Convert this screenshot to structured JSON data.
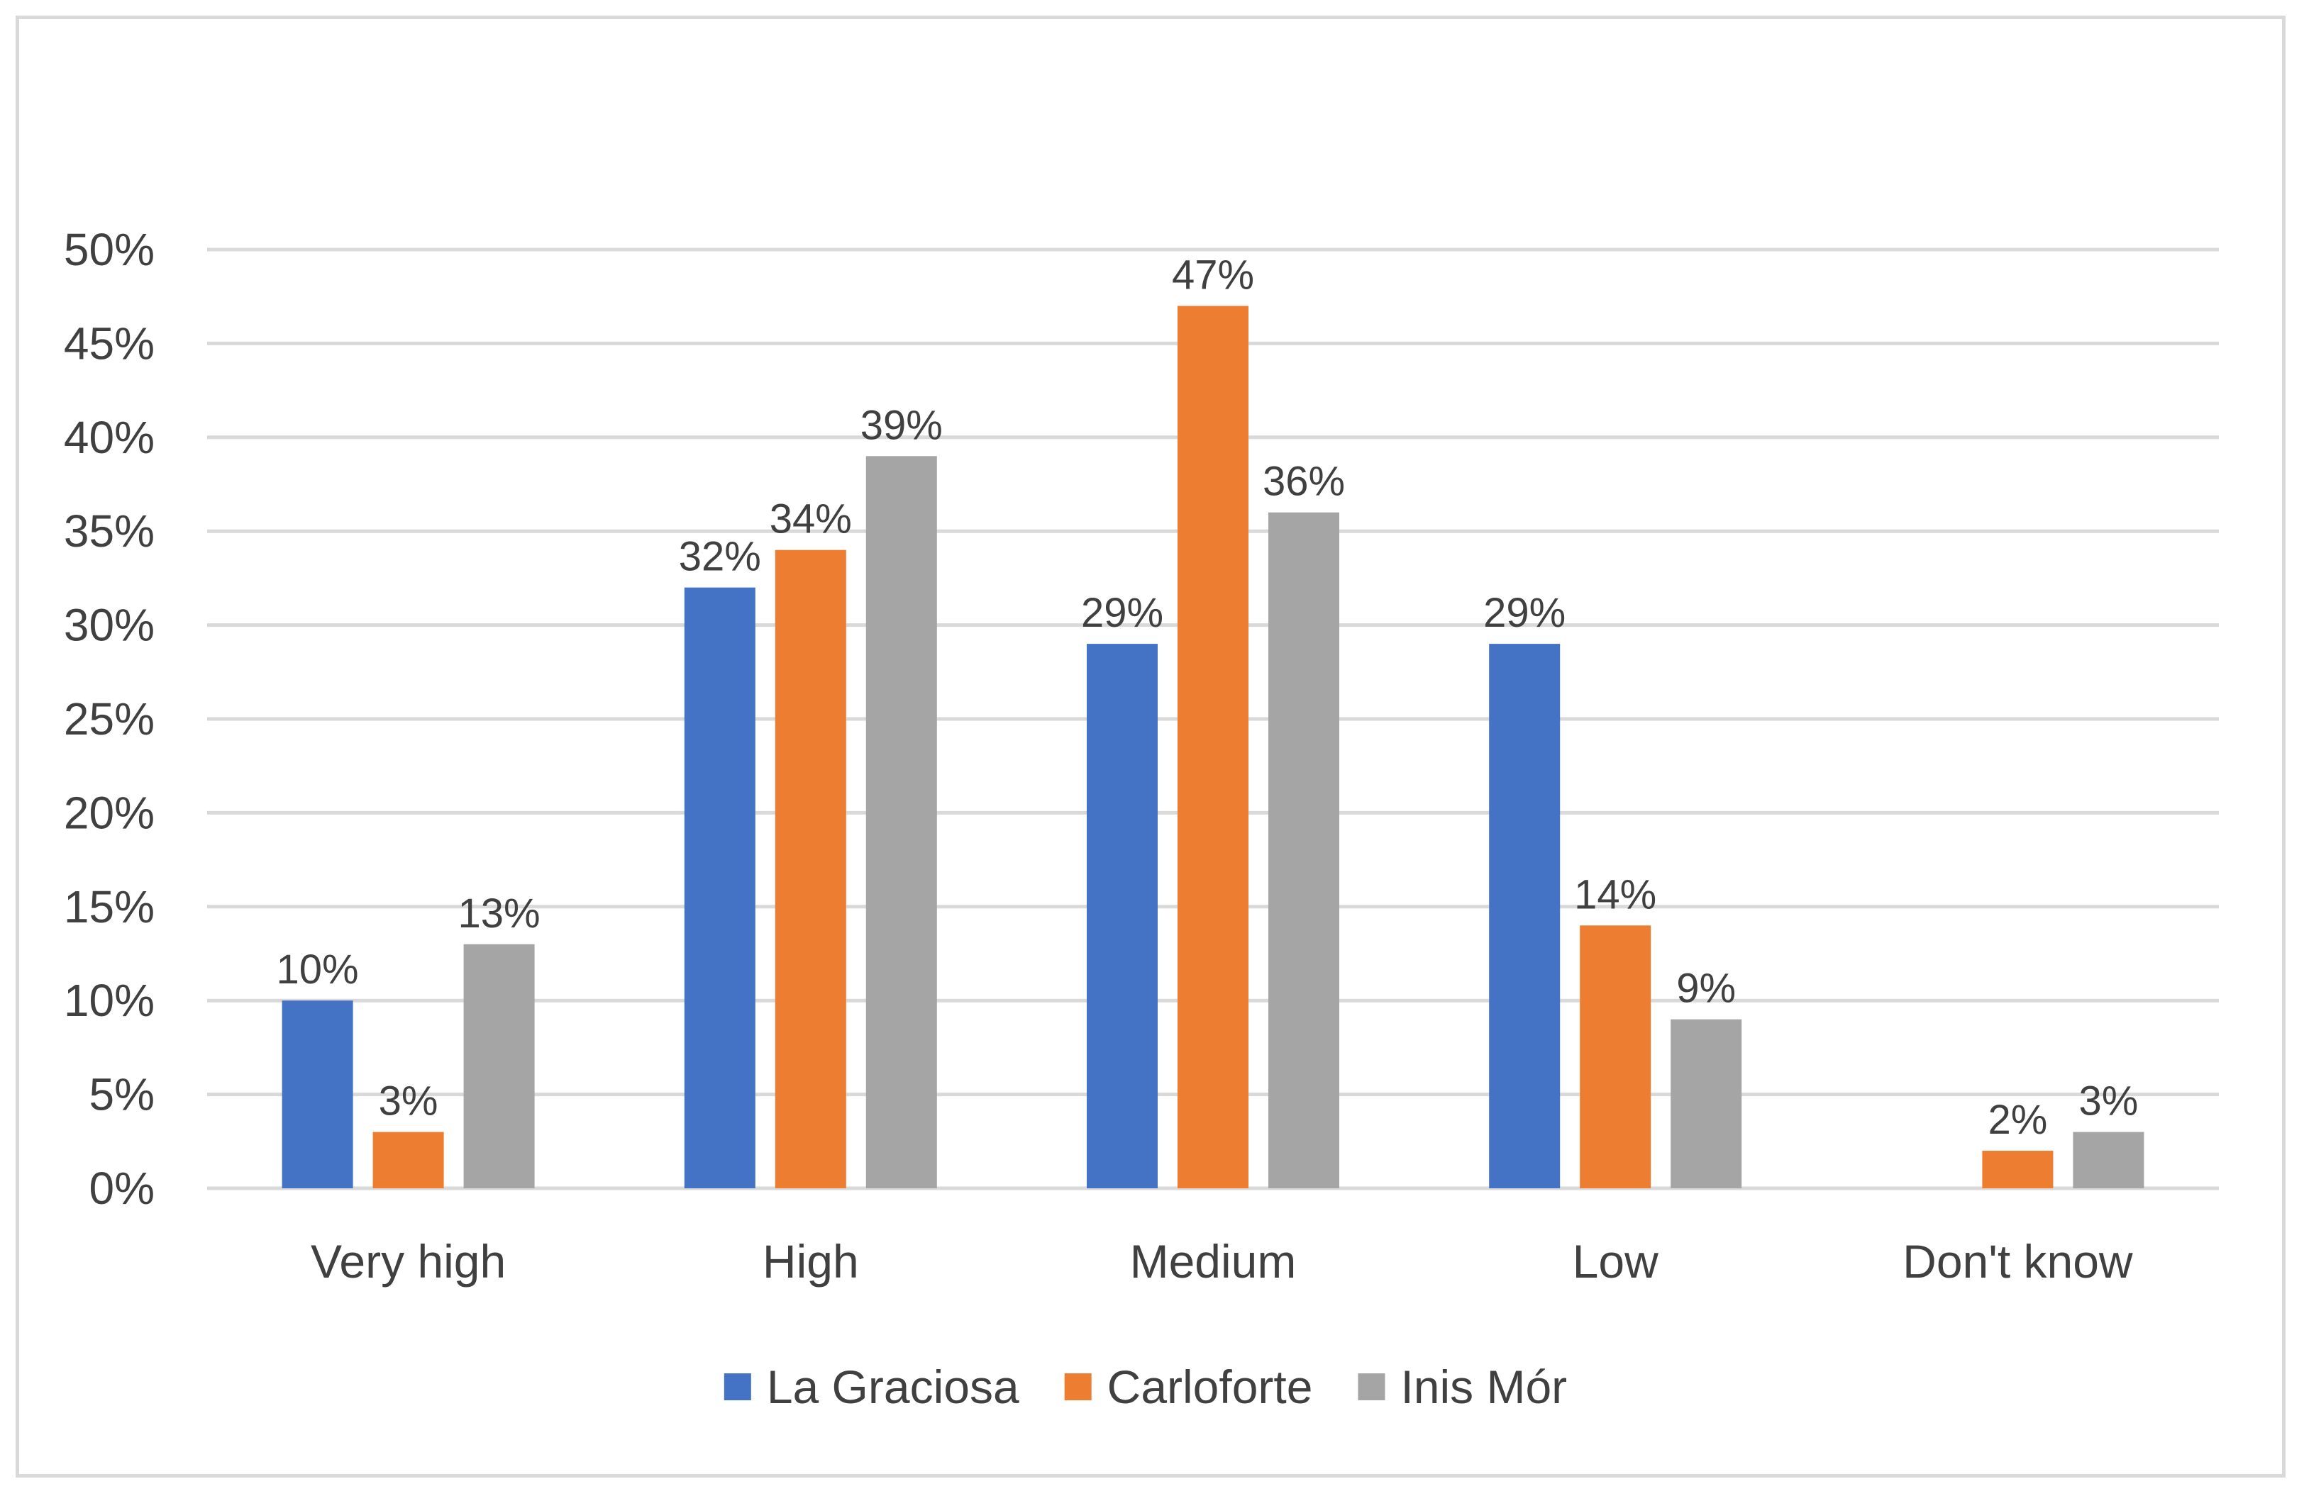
{
  "chart_data": {
    "type": "bar",
    "title": "",
    "xlabel": "",
    "ylabel": "",
    "categories": [
      "Very high",
      "High",
      "Medium",
      "Low",
      "Don't know"
    ],
    "series": [
      {
        "name": "La Graciosa",
        "color": "#4472c4",
        "values": [
          10,
          32,
          29,
          29,
          0
        ],
        "labels": [
          "10%",
          "32%",
          "29%",
          "29%",
          ""
        ]
      },
      {
        "name": "Carloforte",
        "color": "#ed7d31",
        "values": [
          3,
          34,
          47,
          14,
          2
        ],
        "labels": [
          "3%",
          "34%",
          "47%",
          "14%",
          "2%"
        ]
      },
      {
        "name": "Inis Mór",
        "color": "#a5a5a5",
        "values": [
          13,
          39,
          36,
          9,
          3
        ],
        "labels": [
          "13%",
          "39%",
          "36%",
          "9%",
          "3%"
        ]
      }
    ],
    "ylim": [
      0,
      50
    ],
    "yticks": [
      0,
      5,
      10,
      15,
      20,
      25,
      30,
      35,
      40,
      45,
      50
    ],
    "ytick_labels": [
      "0%",
      "5%",
      "10%",
      "15%",
      "20%",
      "25%",
      "30%",
      "35%",
      "40%",
      "45%",
      "50%"
    ],
    "grid": true,
    "gridline_color": "#d9d9d9",
    "legend_position": "bottom"
  }
}
